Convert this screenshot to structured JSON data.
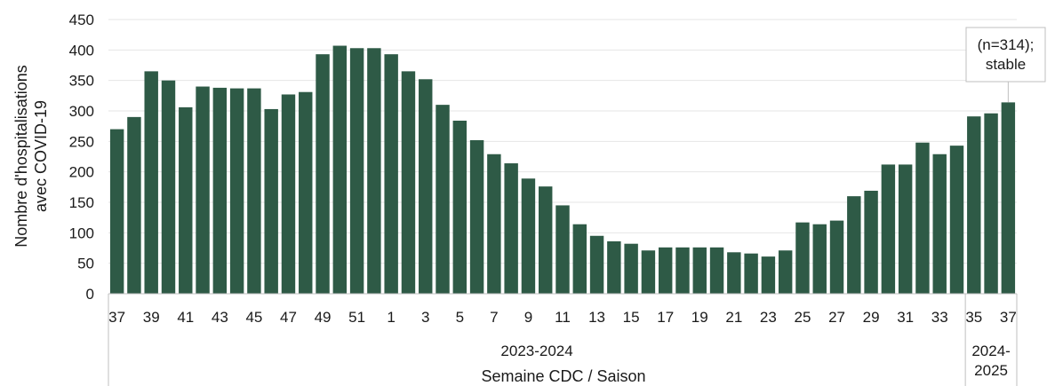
{
  "chart_data": {
    "type": "bar",
    "bar_color": "#2e5a46",
    "categories": [
      "37",
      "38",
      "39",
      "40",
      "41",
      "42",
      "43",
      "44",
      "45",
      "46",
      "47",
      "48",
      "49",
      "50",
      "51",
      "52",
      "1",
      "2",
      "3",
      "4",
      "5",
      "6",
      "7",
      "8",
      "9",
      "10",
      "11",
      "12",
      "13",
      "14",
      "15",
      "16",
      "17",
      "18",
      "19",
      "20",
      "21",
      "22",
      "23",
      "24",
      "25",
      "26",
      "27",
      "28",
      "29",
      "30",
      "31",
      "32",
      "33",
      "34",
      "35",
      "36",
      "37"
    ],
    "values": [
      270,
      290,
      365,
      350,
      306,
      340,
      338,
      337,
      337,
      303,
      327,
      331,
      393,
      407,
      403,
      403,
      393,
      365,
      352,
      310,
      284,
      252,
      229,
      214,
      189,
      176,
      145,
      114,
      95,
      86,
      82,
      71,
      76,
      76,
      76,
      76,
      68,
      66,
      61,
      71,
      117,
      114,
      120,
      160,
      169,
      212,
      212,
      248,
      229,
      243,
      291,
      296,
      314
    ],
    "ylabel": "Nombre d'hospitalisations avec COVID-19",
    "ylabel_lines": [
      "Nombre d'hospitalisations",
      "avec COVID-19"
    ],
    "ylim": [
      0,
      450
    ],
    "yticks": [
      0,
      50,
      100,
      150,
      200,
      250,
      300,
      350,
      400,
      450
    ],
    "x_tick_labels": [
      "37",
      "39",
      "41",
      "43",
      "45",
      "47",
      "49",
      "51",
      "1",
      "3",
      "5",
      "7",
      "9",
      "11",
      "13",
      "15",
      "17",
      "19",
      "21",
      "23",
      "25",
      "27",
      "29",
      "31",
      "33",
      "35",
      "37"
    ],
    "grid": true,
    "seasons": [
      {
        "label_lines": [
          "2023-2024"
        ],
        "start_index": 0,
        "end_index": 49
      },
      {
        "label_lines": [
          "2024-",
          "2025"
        ],
        "start_index": 50,
        "end_index": 52
      }
    ],
    "xlabel": "Semaine CDC / Saison",
    "annotation": {
      "lines": [
        "(n=314);",
        "stable"
      ],
      "bar_index": 52
    }
  }
}
